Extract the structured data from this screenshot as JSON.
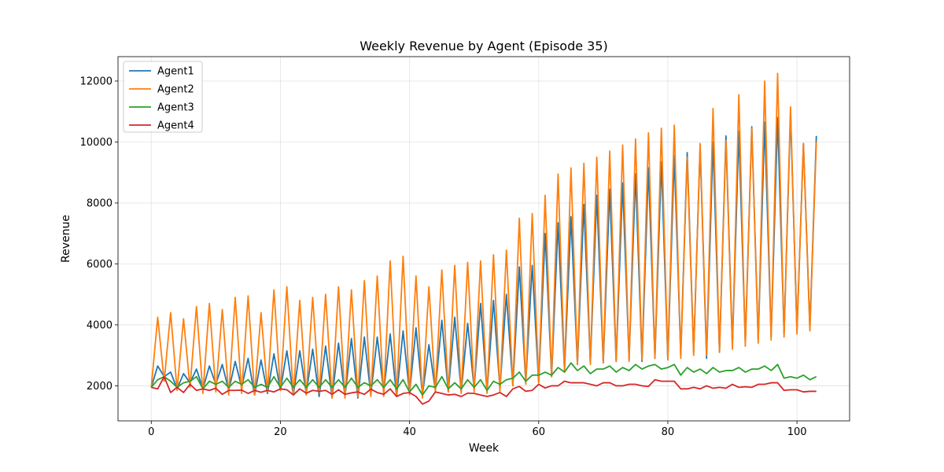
{
  "chart_data": {
    "type": "line",
    "title": "Weekly Revenue by Agent (Episode 35)",
    "xlabel": "Week",
    "ylabel": "Revenue",
    "xlim": [
      -5.15,
      108.15
    ],
    "ylim": [
      850,
      12800
    ],
    "xticks": [
      0,
      20,
      40,
      60,
      80,
      100
    ],
    "yticks": [
      2000,
      4000,
      6000,
      8000,
      10000,
      12000
    ],
    "grid": true,
    "legend_position": "upper-left",
    "x": [
      0,
      1,
      2,
      3,
      4,
      5,
      6,
      7,
      8,
      9,
      10,
      11,
      12,
      13,
      14,
      15,
      16,
      17,
      18,
      19,
      20,
      21,
      22,
      23,
      24,
      25,
      26,
      27,
      28,
      29,
      30,
      31,
      32,
      33,
      34,
      35,
      36,
      37,
      38,
      39,
      40,
      41,
      42,
      43,
      44,
      45,
      46,
      47,
      48,
      49,
      50,
      51,
      52,
      53,
      54,
      55,
      56,
      57,
      58,
      59,
      60,
      61,
      62,
      63,
      64,
      65,
      66,
      67,
      68,
      69,
      70,
      71,
      72,
      73,
      74,
      75,
      76,
      77,
      78,
      79,
      80,
      81,
      82,
      83,
      84,
      85,
      86,
      87,
      88,
      89,
      90,
      91,
      92,
      93,
      94,
      95,
      96,
      97,
      98,
      99,
      100,
      101,
      102,
      103
    ],
    "series": [
      {
        "name": "Agent1",
        "color": "#1f77b4",
        "values": [
          1950,
          2650,
          2300,
          2450,
          1900,
          2400,
          2100,
          2550,
          1900,
          2650,
          2050,
          2700,
          1850,
          2800,
          1950,
          2900,
          1700,
          2850,
          1750,
          3050,
          1850,
          3150,
          1700,
          3150,
          1750,
          3200,
          1650,
          3300,
          1600,
          3400,
          1650,
          3550,
          1600,
          3600,
          1700,
          3600,
          1800,
          3700,
          1650,
          3800,
          1750,
          3900,
          1700,
          3350,
          1850,
          4150,
          1800,
          4250,
          1800,
          4050,
          1900,
          4700,
          1800,
          4800,
          1900,
          5000,
          2000,
          5900,
          2100,
          5950,
          2100,
          7000,
          2300,
          7350,
          2500,
          7550,
          2700,
          7950,
          2750,
          8250,
          2750,
          8450,
          2800,
          8650,
          2850,
          8950,
          2800,
          9150,
          2900,
          9350,
          2850,
          9550,
          3000,
          9650,
          3100,
          9850,
          2900,
          10000,
          3100,
          10200,
          3300,
          10350,
          3400,
          10500,
          3500,
          10650,
          3600,
          10800,
          3700,
          10950,
          3800,
          9950,
          3900,
          10200
        ]
      },
      {
        "name": "Agent2",
        "color": "#ff7f0e",
        "values": [
          1950,
          4250,
          2150,
          4400,
          1850,
          4200,
          1950,
          4600,
          1750,
          4700,
          1800,
          4500,
          1700,
          4900,
          1750,
          4950,
          1700,
          4400,
          1800,
          5150,
          1850,
          5250,
          1700,
          4800,
          1700,
          4900,
          1750,
          5000,
          1600,
          5250,
          1600,
          5150,
          1650,
          5450,
          1650,
          5600,
          1650,
          6100,
          1700,
          6250,
          1700,
          5600,
          1600,
          5250,
          1800,
          5800,
          1800,
          5950,
          1750,
          6050,
          1800,
          6100,
          1750,
          6300,
          1800,
          6450,
          2000,
          7500,
          2050,
          7650,
          2100,
          8250,
          2300,
          8950,
          2500,
          9150,
          2700,
          9300,
          2700,
          9500,
          2750,
          9700,
          2800,
          9900,
          2800,
          10100,
          2850,
          10300,
          2900,
          10450,
          2850,
          10550,
          2900,
          9500,
          3000,
          9950,
          3000,
          11100,
          3100,
          10050,
          3200,
          11550,
          3300,
          10450,
          3400,
          12000,
          3500,
          12250,
          3600,
          11150,
          3700,
          9950,
          3800,
          10000
        ]
      },
      {
        "name": "Agent3",
        "color": "#2ca02c",
        "values": [
          1950,
          2200,
          2300,
          2150,
          1950,
          2100,
          2150,
          2300,
          1900,
          2150,
          2050,
          2150,
          1950,
          2150,
          2050,
          2200,
          1950,
          2050,
          1950,
          2300,
          1950,
          2250,
          1950,
          2200,
          1950,
          2200,
          1950,
          2200,
          1950,
          2200,
          1950,
          2250,
          1950,
          2100,
          2000,
          2200,
          1950,
          2200,
          1900,
          2200,
          1800,
          2050,
          1700,
          2000,
          1950,
          2300,
          1900,
          2100,
          1900,
          2200,
          1950,
          2200,
          1850,
          2150,
          2050,
          2200,
          2250,
          2450,
          2150,
          2350,
          2350,
          2450,
          2350,
          2600,
          2450,
          2750,
          2500,
          2650,
          2400,
          2550,
          2550,
          2650,
          2450,
          2600,
          2500,
          2700,
          2550,
          2650,
          2700,
          2550,
          2600,
          2700,
          2350,
          2600,
          2450,
          2550,
          2400,
          2600,
          2450,
          2500,
          2500,
          2600,
          2450,
          2550,
          2550,
          2650,
          2500,
          2700,
          2250,
          2300,
          2250,
          2350,
          2200,
          2300
        ]
      },
      {
        "name": "Agent4",
        "color": "#d62728",
        "values": [
          1950,
          1900,
          2300,
          1780,
          1950,
          1780,
          2050,
          1850,
          1900,
          1850,
          1920,
          1720,
          1850,
          1850,
          1860,
          1750,
          1850,
          1790,
          1850,
          1800,
          1900,
          1870,
          1700,
          1900,
          1760,
          1850,
          1820,
          1850,
          1720,
          1870,
          1720,
          1770,
          1800,
          1720,
          1890,
          1780,
          1720,
          1900,
          1650,
          1750,
          1780,
          1650,
          1400,
          1500,
          1800,
          1750,
          1700,
          1720,
          1650,
          1760,
          1750,
          1700,
          1650,
          1700,
          1780,
          1650,
          1900,
          1980,
          1820,
          1850,
          2050,
          1930,
          2000,
          2000,
          2150,
          2100,
          2100,
          2100,
          2050,
          2000,
          2100,
          2100,
          2000,
          2000,
          2050,
          2050,
          2000,
          1980,
          2200,
          2150,
          2150,
          2150,
          1900,
          1900,
          1950,
          1900,
          2000,
          1920,
          1950,
          1920,
          2050,
          1950,
          1970,
          1950,
          2050,
          2050,
          2100,
          2100,
          1850,
          1870,
          1870,
          1800,
          1820,
          1820
        ]
      }
    ]
  }
}
